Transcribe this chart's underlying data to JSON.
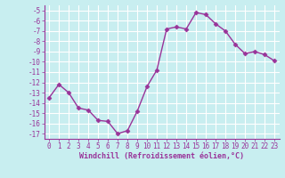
{
  "x": [
    0,
    1,
    2,
    3,
    4,
    5,
    6,
    7,
    8,
    9,
    10,
    11,
    12,
    13,
    14,
    15,
    16,
    17,
    18,
    19,
    20,
    21,
    22,
    23
  ],
  "y": [
    -13.5,
    -12.2,
    -13.0,
    -14.5,
    -14.7,
    -15.7,
    -15.8,
    -17.0,
    -16.7,
    -14.8,
    -12.4,
    -10.8,
    -6.8,
    -6.6,
    -6.8,
    -5.2,
    -5.4,
    -6.3,
    -7.0,
    -8.3,
    -9.2,
    -9.0,
    -9.3,
    -9.9
  ],
  "line_color": "#993399",
  "marker": "D",
  "marker_size": 2.5,
  "background_color": "#c8eef0",
  "grid_color": "#ffffff",
  "xlabel": "Windchill (Refroidissement éolien,°C)",
  "ylim": [
    -17.5,
    -4.5
  ],
  "xlim": [
    -0.5,
    23.5
  ],
  "yticks": [
    -5,
    -6,
    -7,
    -8,
    -9,
    -10,
    -11,
    -12,
    -13,
    -14,
    -15,
    -16,
    -17
  ],
  "xticks": [
    0,
    1,
    2,
    3,
    4,
    5,
    6,
    7,
    8,
    9,
    10,
    11,
    12,
    13,
    14,
    15,
    16,
    17,
    18,
    19,
    20,
    21,
    22,
    23
  ],
  "tick_color": "#993399",
  "label_color": "#993399",
  "font_family": "monospace",
  "tick_fontsize": 5.5,
  "xlabel_fontsize": 6.0,
  "linewidth": 1.0
}
